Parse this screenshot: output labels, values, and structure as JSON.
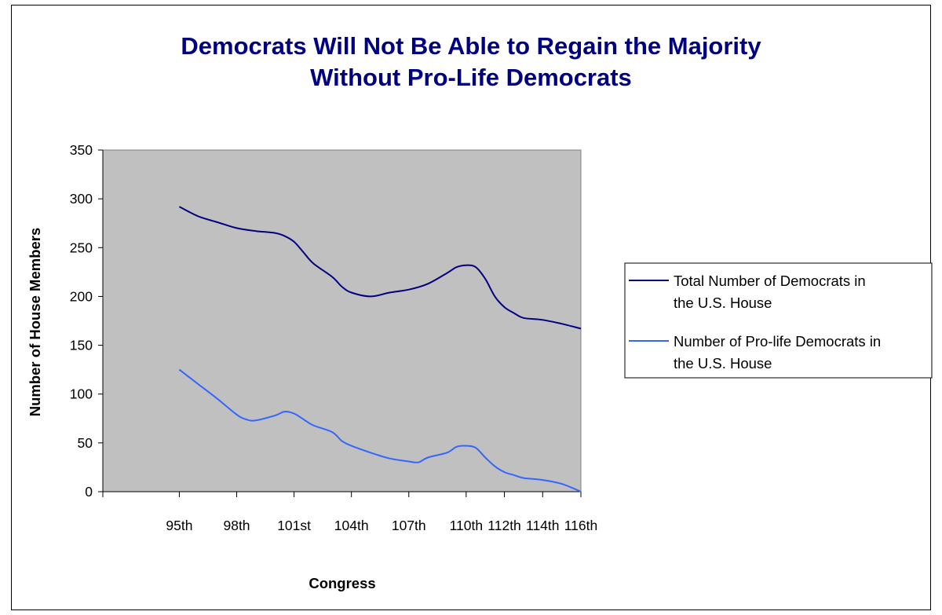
{
  "chart_data": {
    "type": "line",
    "title_lines": [
      "Democrats Will Not Be Able to Regain the Majority",
      "Without Pro-Life Democrats"
    ],
    "xlabel": "Congress",
    "ylabel": "Number of House Members",
    "ylim": [
      0,
      350
    ],
    "yticks": [
      0,
      50,
      100,
      150,
      200,
      250,
      300,
      350
    ],
    "x_tick_labels": [
      "95th",
      "98th",
      "101st",
      "104th",
      "107th",
      "110th",
      "112th",
      "114th",
      "116th"
    ],
    "grid": false,
    "plot_background": "#c0c0c0",
    "legend_position": "right",
    "series": [
      {
        "name_lines": [
          "Total Number of Democrats in",
          "the U.S. House"
        ],
        "color": "#000080",
        "x": [
          95,
          96,
          97,
          98,
          99,
          100,
          100.5,
          101,
          101.5,
          102,
          103,
          103.5,
          104,
          105,
          106,
          107,
          108,
          109,
          109.5,
          110,
          110.5,
          111,
          111.5,
          112,
          112.5,
          113,
          114,
          115,
          116
        ],
        "values": [
          292,
          282,
          276,
          270,
          267,
          265,
          262,
          256,
          245,
          234,
          220,
          210,
          204,
          200,
          204,
          207,
          213,
          224,
          230,
          232,
          230,
          218,
          200,
          189,
          183,
          178,
          176,
          172,
          167
        ]
      },
      {
        "name_lines": [
          "Number of Pro-life Democrats in",
          "the U.S. House"
        ],
        "color": "#3366ff",
        "x": [
          95,
          96,
          97,
          98,
          98.5,
          99,
          100,
          100.5,
          101,
          101.5,
          102,
          103,
          103.5,
          104,
          105,
          106,
          107,
          107.5,
          108,
          109,
          109.5,
          110,
          110.5,
          111,
          111.5,
          112,
          112.5,
          113,
          114,
          115,
          116
        ],
        "values": [
          125,
          110,
          95,
          79,
          74,
          73,
          78,
          82,
          80,
          74,
          68,
          61,
          52,
          47,
          40,
          34,
          31,
          30,
          35,
          40,
          46,
          47,
          45,
          35,
          26,
          20,
          17,
          14,
          12,
          8,
          0
        ]
      }
    ]
  }
}
